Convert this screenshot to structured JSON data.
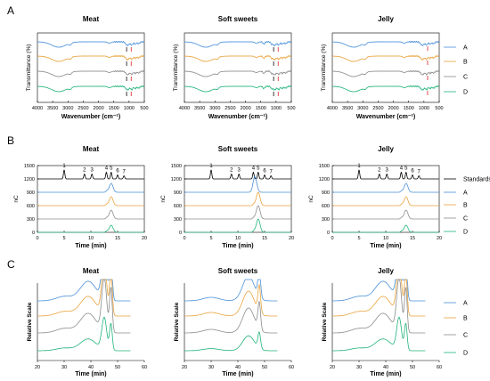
{
  "figure": {
    "panel_letters": [
      "A",
      "B",
      "C"
    ],
    "legend_labels": {
      "A": [
        "A",
        "B",
        "C",
        "D"
      ],
      "B": [
        "Standards",
        "A",
        "B",
        "C",
        "D"
      ],
      "C": [
        "A",
        "B",
        "C",
        "D"
      ]
    },
    "sample_colors": {
      "Standards": "#000000",
      "A": "#4a90d9",
      "B": "#e8a33d",
      "C": "#8c8c8c",
      "D": "#21b37a"
    },
    "peak_labels": [
      "1",
      "2",
      "3",
      "4",
      "5",
      "6",
      "7"
    ]
  },
  "chart_data": [
    {
      "type": "line",
      "panel": "A",
      "title": "Meat",
      "xlabel": "Wavenumber (cm⁻¹)",
      "ylabel": "Transmittance (%)",
      "xlim": [
        4000,
        500
      ],
      "x_reversed": true,
      "xticks": [
        "4000",
        "3500",
        "3000",
        "2500",
        "2000",
        "1500",
        "1000",
        "500"
      ],
      "series": [
        {
          "name": "A"
        },
        {
          "name": "B"
        },
        {
          "name": "C"
        },
        {
          "name": "D"
        }
      ]
    },
    {
      "type": "line",
      "panel": "A",
      "title": "Soft sweets",
      "xlabel": "Wavenumber (cm⁻¹)",
      "ylabel": "Transmittance (%)",
      "xlim": [
        4000,
        500
      ],
      "x_reversed": true,
      "xticks": [
        "4000",
        "3500",
        "3000",
        "2500",
        "2000",
        "1500",
        "1000",
        "500"
      ],
      "series": [
        {
          "name": "A"
        },
        {
          "name": "B"
        },
        {
          "name": "C"
        },
        {
          "name": "D"
        }
      ]
    },
    {
      "type": "line",
      "panel": "A",
      "title": "Jelly",
      "xlabel": "Wavenumber (cm⁻¹)",
      "ylabel": "Transmittance (%)",
      "xlim": [
        4000,
        500
      ],
      "x_reversed": true,
      "xticks": [
        "4000",
        "3500",
        "3000",
        "2500",
        "2000",
        "1500",
        "1000",
        "500"
      ],
      "series": [
        {
          "name": "A"
        },
        {
          "name": "B"
        },
        {
          "name": "C"
        },
        {
          "name": "D"
        }
      ]
    },
    {
      "type": "line",
      "panel": "B",
      "title": "Meat",
      "xlabel": "Time (min)",
      "ylabel": "nC",
      "xlim": [
        0,
        20
      ],
      "ylim": [
        0,
        1500
      ],
      "xticks": [
        "0",
        "5",
        "10",
        "15",
        "20"
      ],
      "yticks": [
        "0",
        "300",
        "600",
        "900",
        "1200",
        "1500"
      ],
      "series": [
        {
          "name": "Standards",
          "peaks_x": [
            5.0,
            8.8,
            10.2,
            12.9,
            13.8,
            15.0,
            16.2
          ]
        },
        {
          "name": "A",
          "peaks_x": [
            13.8
          ]
        },
        {
          "name": "B",
          "peaks_x": [
            13.8
          ]
        },
        {
          "name": "C",
          "peaks_x": [
            13.8
          ]
        },
        {
          "name": "D",
          "peaks_x": [
            13.8
          ]
        }
      ]
    },
    {
      "type": "line",
      "panel": "B",
      "title": "Soft sweets",
      "xlabel": "Time (min)",
      "ylabel": "nC",
      "xlim": [
        0,
        20
      ],
      "ylim": [
        0,
        1500
      ],
      "xticks": [
        "0",
        "5",
        "10",
        "15",
        "20"
      ],
      "yticks": [
        "0",
        "300",
        "600",
        "900",
        "1200",
        "1500"
      ],
      "series": [
        {
          "name": "Standards",
          "peaks_x": [
            5.0,
            8.8,
            10.2,
            12.9,
            13.8,
            15.0,
            16.2
          ]
        },
        {
          "name": "A",
          "peaks_x": [
            13.2
          ]
        },
        {
          "name": "B",
          "peaks_x": [
            13.8
          ]
        },
        {
          "name": "C",
          "peaks_x": [
            13.8
          ]
        },
        {
          "name": "D",
          "peaks_x": [
            13.8
          ]
        }
      ]
    },
    {
      "type": "line",
      "panel": "B",
      "title": "Jelly",
      "xlabel": "Time (min)",
      "ylabel": "nC",
      "xlim": [
        0,
        20
      ],
      "ylim": [
        0,
        1500
      ],
      "xticks": [
        "0",
        "5",
        "10",
        "15",
        "20"
      ],
      "yticks": [
        "0",
        "300",
        "600",
        "900",
        "1200",
        "1500"
      ],
      "series": [
        {
          "name": "Standards",
          "peaks_x": [
            5.0,
            8.8,
            10.2,
            12.9,
            13.8,
            15.0,
            16.2
          ]
        },
        {
          "name": "A",
          "peaks_x": [
            13.8
          ]
        },
        {
          "name": "B",
          "peaks_x": [
            13.8
          ]
        },
        {
          "name": "C",
          "peaks_x": [
            13.8
          ]
        },
        {
          "name": "D",
          "peaks_x": [
            13.8
          ]
        }
      ]
    },
    {
      "type": "line",
      "panel": "C",
      "title": "Meat",
      "xlabel": "Time (min)",
      "ylabel": "Relative Scale",
      "xlim": [
        20,
        60
      ],
      "xticks": [
        "20",
        "30",
        "40",
        "50",
        "60"
      ],
      "series": [
        {
          "name": "A"
        },
        {
          "name": "B"
        },
        {
          "name": "C"
        },
        {
          "name": "D"
        }
      ]
    },
    {
      "type": "line",
      "panel": "C",
      "title": "Soft sweets",
      "xlabel": "Time (min)",
      "ylabel": "Relative Scale",
      "xlim": [
        20,
        60
      ],
      "xticks": [
        "20",
        "30",
        "40",
        "50",
        "60"
      ],
      "series": [
        {
          "name": "A"
        },
        {
          "name": "B"
        },
        {
          "name": "C"
        },
        {
          "name": "D"
        }
      ]
    },
    {
      "type": "line",
      "panel": "C",
      "title": "Jelly",
      "xlabel": "Time (min)",
      "ylabel": "Relative Scale",
      "xlim": [
        20,
        60
      ],
      "xticks": [
        "20",
        "30",
        "40",
        "50",
        "60"
      ],
      "series": [
        {
          "name": "A"
        },
        {
          "name": "B"
        },
        {
          "name": "C"
        },
        {
          "name": "D"
        }
      ]
    }
  ]
}
